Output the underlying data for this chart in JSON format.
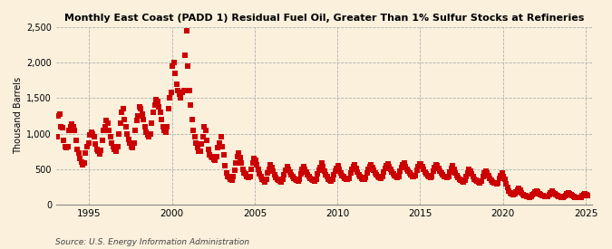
{
  "title": "Monthly East Coast (PADD 1) Residual Fuel Oil, Greater Than 1% Sulfur Stocks at Refineries",
  "ylabel": "Thousand Barrels",
  "source": "Source: U.S. Energy Information Administration",
  "background_color": "#faf0dc",
  "marker_color": "#cc0000",
  "marker": "s",
  "marker_size": 4,
  "ylim": [
    0,
    2500
  ],
  "yticks": [
    0,
    500,
    1000,
    1500,
    2000,
    2500
  ],
  "ytick_labels": [
    "0",
    "500",
    "1,000",
    "1,500",
    "2,000",
    "2,500"
  ],
  "xlim_start": [
    1993,
    1,
    1
  ],
  "xlim_end": [
    2025,
    6,
    1
  ],
  "xtick_years": [
    1995,
    2000,
    2005,
    2010,
    2015,
    2020,
    2025
  ],
  "data": [
    [
      1993,
      1,
      950
    ],
    [
      1993,
      2,
      1250
    ],
    [
      1993,
      3,
      1270
    ],
    [
      1993,
      4,
      1100
    ],
    [
      1993,
      5,
      1080
    ],
    [
      1993,
      6,
      900
    ],
    [
      1993,
      7,
      820
    ],
    [
      1993,
      8,
      800
    ],
    [
      1993,
      9,
      820
    ],
    [
      1993,
      10,
      1050
    ],
    [
      1993,
      11,
      1100
    ],
    [
      1993,
      12,
      1130
    ],
    [
      1994,
      1,
      1100
    ],
    [
      1994,
      2,
      1050
    ],
    [
      1994,
      3,
      900
    ],
    [
      1994,
      4,
      780
    ],
    [
      1994,
      5,
      720
    ],
    [
      1994,
      6,
      650
    ],
    [
      1994,
      7,
      600
    ],
    [
      1994,
      8,
      560
    ],
    [
      1994,
      9,
      580
    ],
    [
      1994,
      10,
      730
    ],
    [
      1994,
      11,
      820
    ],
    [
      1994,
      12,
      870
    ],
    [
      1995,
      1,
      980
    ],
    [
      1995,
      2,
      1020
    ],
    [
      1995,
      3,
      1000
    ],
    [
      1995,
      4,
      950
    ],
    [
      1995,
      5,
      850
    ],
    [
      1995,
      6,
      780
    ],
    [
      1995,
      7,
      750
    ],
    [
      1995,
      8,
      710
    ],
    [
      1995,
      9,
      760
    ],
    [
      1995,
      10,
      900
    ],
    [
      1995,
      11,
      1050
    ],
    [
      1995,
      12,
      1100
    ],
    [
      1996,
      1,
      1180
    ],
    [
      1996,
      2,
      1150
    ],
    [
      1996,
      3,
      1050
    ],
    [
      1996,
      4,
      950
    ],
    [
      1996,
      5,
      870
    ],
    [
      1996,
      6,
      820
    ],
    [
      1996,
      7,
      780
    ],
    [
      1996,
      8,
      750
    ],
    [
      1996,
      9,
      820
    ],
    [
      1996,
      10,
      1000
    ],
    [
      1996,
      11,
      1150
    ],
    [
      1996,
      12,
      1300
    ],
    [
      1997,
      1,
      1350
    ],
    [
      1997,
      2,
      1200
    ],
    [
      1997,
      3,
      1100
    ],
    [
      1997,
      4,
      1000
    ],
    [
      1997,
      5,
      920
    ],
    [
      1997,
      6,
      860
    ],
    [
      1997,
      7,
      820
    ],
    [
      1997,
      8,
      800
    ],
    [
      1997,
      9,
      860
    ],
    [
      1997,
      10,
      1050
    ],
    [
      1997,
      11,
      1180
    ],
    [
      1997,
      12,
      1250
    ],
    [
      1998,
      1,
      1380
    ],
    [
      1998,
      2,
      1350
    ],
    [
      1998,
      3,
      1280
    ],
    [
      1998,
      4,
      1200
    ],
    [
      1998,
      5,
      1100
    ],
    [
      1998,
      6,
      1020
    ],
    [
      1998,
      7,
      980
    ],
    [
      1998,
      8,
      950
    ],
    [
      1998,
      9,
      1000
    ],
    [
      1998,
      10,
      1150
    ],
    [
      1998,
      11,
      1300
    ],
    [
      1998,
      12,
      1400
    ],
    [
      1999,
      1,
      1480
    ],
    [
      1999,
      2,
      1450
    ],
    [
      1999,
      3,
      1380
    ],
    [
      1999,
      4,
      1300
    ],
    [
      1999,
      5,
      1200
    ],
    [
      1999,
      6,
      1100
    ],
    [
      1999,
      7,
      1050
    ],
    [
      1999,
      8,
      1020
    ],
    [
      1999,
      9,
      1100
    ],
    [
      1999,
      10,
      1350
    ],
    [
      1999,
      11,
      1500
    ],
    [
      1999,
      12,
      1580
    ],
    [
      2000,
      1,
      1950
    ],
    [
      2000,
      2,
      2000
    ],
    [
      2000,
      3,
      1850
    ],
    [
      2000,
      4,
      1700
    ],
    [
      2000,
      5,
      1600
    ],
    [
      2000,
      6,
      1550
    ],
    [
      2000,
      7,
      1500
    ],
    [
      2000,
      8,
      1580
    ],
    [
      2000,
      9,
      1600
    ],
    [
      2000,
      10,
      2100
    ],
    [
      2000,
      11,
      2450
    ],
    [
      2000,
      12,
      1950
    ],
    [
      2001,
      1,
      1600
    ],
    [
      2001,
      2,
      1400
    ],
    [
      2001,
      3,
      1200
    ],
    [
      2001,
      4,
      1050
    ],
    [
      2001,
      5,
      950
    ],
    [
      2001,
      6,
      870
    ],
    [
      2001,
      7,
      800
    ],
    [
      2001,
      8,
      750
    ],
    [
      2001,
      9,
      750
    ],
    [
      2001,
      10,
      850
    ],
    [
      2001,
      11,
      950
    ],
    [
      2001,
      12,
      1100
    ],
    [
      2002,
      1,
      1050
    ],
    [
      2002,
      2,
      900
    ],
    [
      2002,
      3,
      780
    ],
    [
      2002,
      4,
      700
    ],
    [
      2002,
      5,
      680
    ],
    [
      2002,
      6,
      660
    ],
    [
      2002,
      7,
      640
    ],
    [
      2002,
      8,
      620
    ],
    [
      2002,
      9,
      680
    ],
    [
      2002,
      10,
      800
    ],
    [
      2002,
      11,
      870
    ],
    [
      2002,
      12,
      950
    ],
    [
      2003,
      1,
      820
    ],
    [
      2003,
      2,
      700
    ],
    [
      2003,
      3,
      550
    ],
    [
      2003,
      4,
      450
    ],
    [
      2003,
      5,
      400
    ],
    [
      2003,
      6,
      380
    ],
    [
      2003,
      7,
      360
    ],
    [
      2003,
      8,
      340
    ],
    [
      2003,
      9,
      390
    ],
    [
      2003,
      10,
      480
    ],
    [
      2003,
      11,
      580
    ],
    [
      2003,
      12,
      680
    ],
    [
      2004,
      1,
      730
    ],
    [
      2004,
      2,
      660
    ],
    [
      2004,
      3,
      580
    ],
    [
      2004,
      4,
      500
    ],
    [
      2004,
      5,
      450
    ],
    [
      2004,
      6,
      430
    ],
    [
      2004,
      7,
      400
    ],
    [
      2004,
      8,
      380
    ],
    [
      2004,
      9,
      400
    ],
    [
      2004,
      10,
      500
    ],
    [
      2004,
      11,
      580
    ],
    [
      2004,
      12,
      650
    ],
    [
      2005,
      1,
      620
    ],
    [
      2005,
      2,
      560
    ],
    [
      2005,
      3,
      490
    ],
    [
      2005,
      4,
      430
    ],
    [
      2005,
      5,
      390
    ],
    [
      2005,
      6,
      360
    ],
    [
      2005,
      7,
      340
    ],
    [
      2005,
      8,
      320
    ],
    [
      2005,
      9,
      360
    ],
    [
      2005,
      10,
      440
    ],
    [
      2005,
      11,
      500
    ],
    [
      2005,
      12,
      560
    ],
    [
      2006,
      1,
      520
    ],
    [
      2006,
      2,
      470
    ],
    [
      2006,
      3,
      420
    ],
    [
      2006,
      4,
      380
    ],
    [
      2006,
      5,
      360
    ],
    [
      2006,
      6,
      340
    ],
    [
      2006,
      7,
      330
    ],
    [
      2006,
      8,
      320
    ],
    [
      2006,
      9,
      350
    ],
    [
      2006,
      10,
      420
    ],
    [
      2006,
      11,
      480
    ],
    [
      2006,
      12,
      530
    ],
    [
      2007,
      1,
      500
    ],
    [
      2007,
      2,
      460
    ],
    [
      2007,
      3,
      420
    ],
    [
      2007,
      4,
      390
    ],
    [
      2007,
      5,
      370
    ],
    [
      2007,
      6,
      350
    ],
    [
      2007,
      7,
      340
    ],
    [
      2007,
      8,
      330
    ],
    [
      2007,
      9,
      360
    ],
    [
      2007,
      10,
      430
    ],
    [
      2007,
      11,
      490
    ],
    [
      2007,
      12,
      530
    ],
    [
      2008,
      1,
      500
    ],
    [
      2008,
      2,
      460
    ],
    [
      2008,
      3,
      420
    ],
    [
      2008,
      4,
      390
    ],
    [
      2008,
      5,
      370
    ],
    [
      2008,
      6,
      350
    ],
    [
      2008,
      7,
      340
    ],
    [
      2008,
      8,
      330
    ],
    [
      2008,
      9,
      360
    ],
    [
      2008,
      10,
      430
    ],
    [
      2008,
      11,
      480
    ],
    [
      2008,
      12,
      520
    ],
    [
      2009,
      1,
      580
    ],
    [
      2009,
      2,
      530
    ],
    [
      2009,
      3,
      470
    ],
    [
      2009,
      4,
      420
    ],
    [
      2009,
      5,
      390
    ],
    [
      2009,
      6,
      360
    ],
    [
      2009,
      7,
      340
    ],
    [
      2009,
      8,
      330
    ],
    [
      2009,
      9,
      350
    ],
    [
      2009,
      10,
      420
    ],
    [
      2009,
      11,
      470
    ],
    [
      2009,
      12,
      510
    ],
    [
      2010,
      1,
      550
    ],
    [
      2010,
      2,
      500
    ],
    [
      2010,
      3,
      450
    ],
    [
      2010,
      4,
      410
    ],
    [
      2010,
      5,
      390
    ],
    [
      2010,
      6,
      370
    ],
    [
      2010,
      7,
      360
    ],
    [
      2010,
      8,
      350
    ],
    [
      2010,
      9,
      370
    ],
    [
      2010,
      10,
      440
    ],
    [
      2010,
      11,
      490
    ],
    [
      2010,
      12,
      530
    ],
    [
      2011,
      1,
      560
    ],
    [
      2011,
      2,
      510
    ],
    [
      2011,
      3,
      460
    ],
    [
      2011,
      4,
      420
    ],
    [
      2011,
      5,
      390
    ],
    [
      2011,
      6,
      370
    ],
    [
      2011,
      7,
      360
    ],
    [
      2011,
      8,
      350
    ],
    [
      2011,
      9,
      380
    ],
    [
      2011,
      10,
      450
    ],
    [
      2011,
      11,
      500
    ],
    [
      2011,
      12,
      540
    ],
    [
      2012,
      1,
      560
    ],
    [
      2012,
      2,
      520
    ],
    [
      2012,
      3,
      480
    ],
    [
      2012,
      4,
      450
    ],
    [
      2012,
      5,
      420
    ],
    [
      2012,
      6,
      400
    ],
    [
      2012,
      7,
      380
    ],
    [
      2012,
      8,
      370
    ],
    [
      2012,
      9,
      390
    ],
    [
      2012,
      10,
      460
    ],
    [
      2012,
      11,
      510
    ],
    [
      2012,
      12,
      550
    ],
    [
      2013,
      1,
      570
    ],
    [
      2013,
      2,
      530
    ],
    [
      2013,
      3,
      490
    ],
    [
      2013,
      4,
      460
    ],
    [
      2013,
      5,
      430
    ],
    [
      2013,
      6,
      410
    ],
    [
      2013,
      7,
      390
    ],
    [
      2013,
      8,
      380
    ],
    [
      2013,
      9,
      400
    ],
    [
      2013,
      10,
      470
    ],
    [
      2013,
      11,
      520
    ],
    [
      2013,
      12,
      560
    ],
    [
      2014,
      1,
      580
    ],
    [
      2014,
      2,
      540
    ],
    [
      2014,
      3,
      500
    ],
    [
      2014,
      4,
      470
    ],
    [
      2014,
      5,
      440
    ],
    [
      2014,
      6,
      420
    ],
    [
      2014,
      7,
      400
    ],
    [
      2014,
      8,
      390
    ],
    [
      2014,
      9,
      410
    ],
    [
      2014,
      10,
      480
    ],
    [
      2014,
      11,
      530
    ],
    [
      2014,
      12,
      570
    ],
    [
      2015,
      1,
      570
    ],
    [
      2015,
      2,
      530
    ],
    [
      2015,
      3,
      490
    ],
    [
      2015,
      4,
      460
    ],
    [
      2015,
      5,
      430
    ],
    [
      2015,
      6,
      410
    ],
    [
      2015,
      7,
      390
    ],
    [
      2015,
      8,
      380
    ],
    [
      2015,
      9,
      400
    ],
    [
      2015,
      10,
      470
    ],
    [
      2015,
      11,
      520
    ],
    [
      2015,
      12,
      560
    ],
    [
      2016,
      1,
      550
    ],
    [
      2016,
      2,
      510
    ],
    [
      2016,
      3,
      470
    ],
    [
      2016,
      4,
      440
    ],
    [
      2016,
      5,
      420
    ],
    [
      2016,
      6,
      400
    ],
    [
      2016,
      7,
      390
    ],
    [
      2016,
      8,
      380
    ],
    [
      2016,
      9,
      400
    ],
    [
      2016,
      10,
      460
    ],
    [
      2016,
      11,
      510
    ],
    [
      2016,
      12,
      550
    ],
    [
      2017,
      1,
      490
    ],
    [
      2017,
      2,
      450
    ],
    [
      2017,
      3,
      410
    ],
    [
      2017,
      4,
      380
    ],
    [
      2017,
      5,
      360
    ],
    [
      2017,
      6,
      340
    ],
    [
      2017,
      7,
      330
    ],
    [
      2017,
      8,
      320
    ],
    [
      2017,
      9,
      340
    ],
    [
      2017,
      10,
      400
    ],
    [
      2017,
      11,
      450
    ],
    [
      2017,
      12,
      490
    ],
    [
      2018,
      1,
      470
    ],
    [
      2018,
      2,
      430
    ],
    [
      2018,
      3,
      390
    ],
    [
      2018,
      4,
      360
    ],
    [
      2018,
      5,
      340
    ],
    [
      2018,
      6,
      330
    ],
    [
      2018,
      7,
      320
    ],
    [
      2018,
      8,
      310
    ],
    [
      2018,
      9,
      330
    ],
    [
      2018,
      10,
      390
    ],
    [
      2018,
      11,
      440
    ],
    [
      2018,
      12,
      470
    ],
    [
      2019,
      1,
      450
    ],
    [
      2019,
      2,
      410
    ],
    [
      2019,
      3,
      370
    ],
    [
      2019,
      4,
      340
    ],
    [
      2019,
      5,
      320
    ],
    [
      2019,
      6,
      310
    ],
    [
      2019,
      7,
      300
    ],
    [
      2019,
      8,
      290
    ],
    [
      2019,
      9,
      310
    ],
    [
      2019,
      10,
      370
    ],
    [
      2019,
      11,
      410
    ],
    [
      2019,
      12,
      440
    ],
    [
      2020,
      1,
      390
    ],
    [
      2020,
      2,
      350
    ],
    [
      2020,
      3,
      290
    ],
    [
      2020,
      4,
      240
    ],
    [
      2020,
      5,
      190
    ],
    [
      2020,
      6,
      165
    ],
    [
      2020,
      7,
      148
    ],
    [
      2020,
      8,
      140
    ],
    [
      2020,
      9,
      148
    ],
    [
      2020,
      10,
      175
    ],
    [
      2020,
      11,
      200
    ],
    [
      2020,
      12,
      230
    ],
    [
      2021,
      1,
      200
    ],
    [
      2021,
      2,
      170
    ],
    [
      2021,
      3,
      145
    ],
    [
      2021,
      4,
      130
    ],
    [
      2021,
      5,
      120
    ],
    [
      2021,
      6,
      112
    ],
    [
      2021,
      7,
      108
    ],
    [
      2021,
      8,
      105
    ],
    [
      2021,
      9,
      112
    ],
    [
      2021,
      10,
      138
    ],
    [
      2021,
      11,
      158
    ],
    [
      2021,
      12,
      180
    ],
    [
      2022,
      1,
      195
    ],
    [
      2022,
      2,
      175
    ],
    [
      2022,
      3,
      158
    ],
    [
      2022,
      4,
      142
    ],
    [
      2022,
      5,
      130
    ],
    [
      2022,
      6,
      120
    ],
    [
      2022,
      7,
      115
    ],
    [
      2022,
      8,
      110
    ],
    [
      2022,
      9,
      118
    ],
    [
      2022,
      10,
      145
    ],
    [
      2022,
      11,
      165
    ],
    [
      2022,
      12,
      185
    ],
    [
      2023,
      1,
      168
    ],
    [
      2023,
      2,
      150
    ],
    [
      2023,
      3,
      135
    ],
    [
      2023,
      4,
      122
    ],
    [
      2023,
      5,
      113
    ],
    [
      2023,
      6,
      108
    ],
    [
      2023,
      7,
      104
    ],
    [
      2023,
      8,
      101
    ],
    [
      2023,
      9,
      108
    ],
    [
      2023,
      10,
      130
    ],
    [
      2023,
      11,
      148
    ],
    [
      2023,
      12,
      165
    ],
    [
      2024,
      1,
      150
    ],
    [
      2024,
      2,
      135
    ],
    [
      2024,
      3,
      122
    ],
    [
      2024,
      4,
      112
    ],
    [
      2024,
      5,
      105
    ],
    [
      2024,
      6,
      101
    ],
    [
      2024,
      7,
      98
    ],
    [
      2024,
      8,
      97
    ],
    [
      2024,
      9,
      102
    ],
    [
      2024,
      10,
      122
    ],
    [
      2024,
      11,
      138
    ],
    [
      2024,
      12,
      150
    ],
    [
      2025,
      1,
      140
    ],
    [
      2025,
      2,
      128
    ]
  ]
}
